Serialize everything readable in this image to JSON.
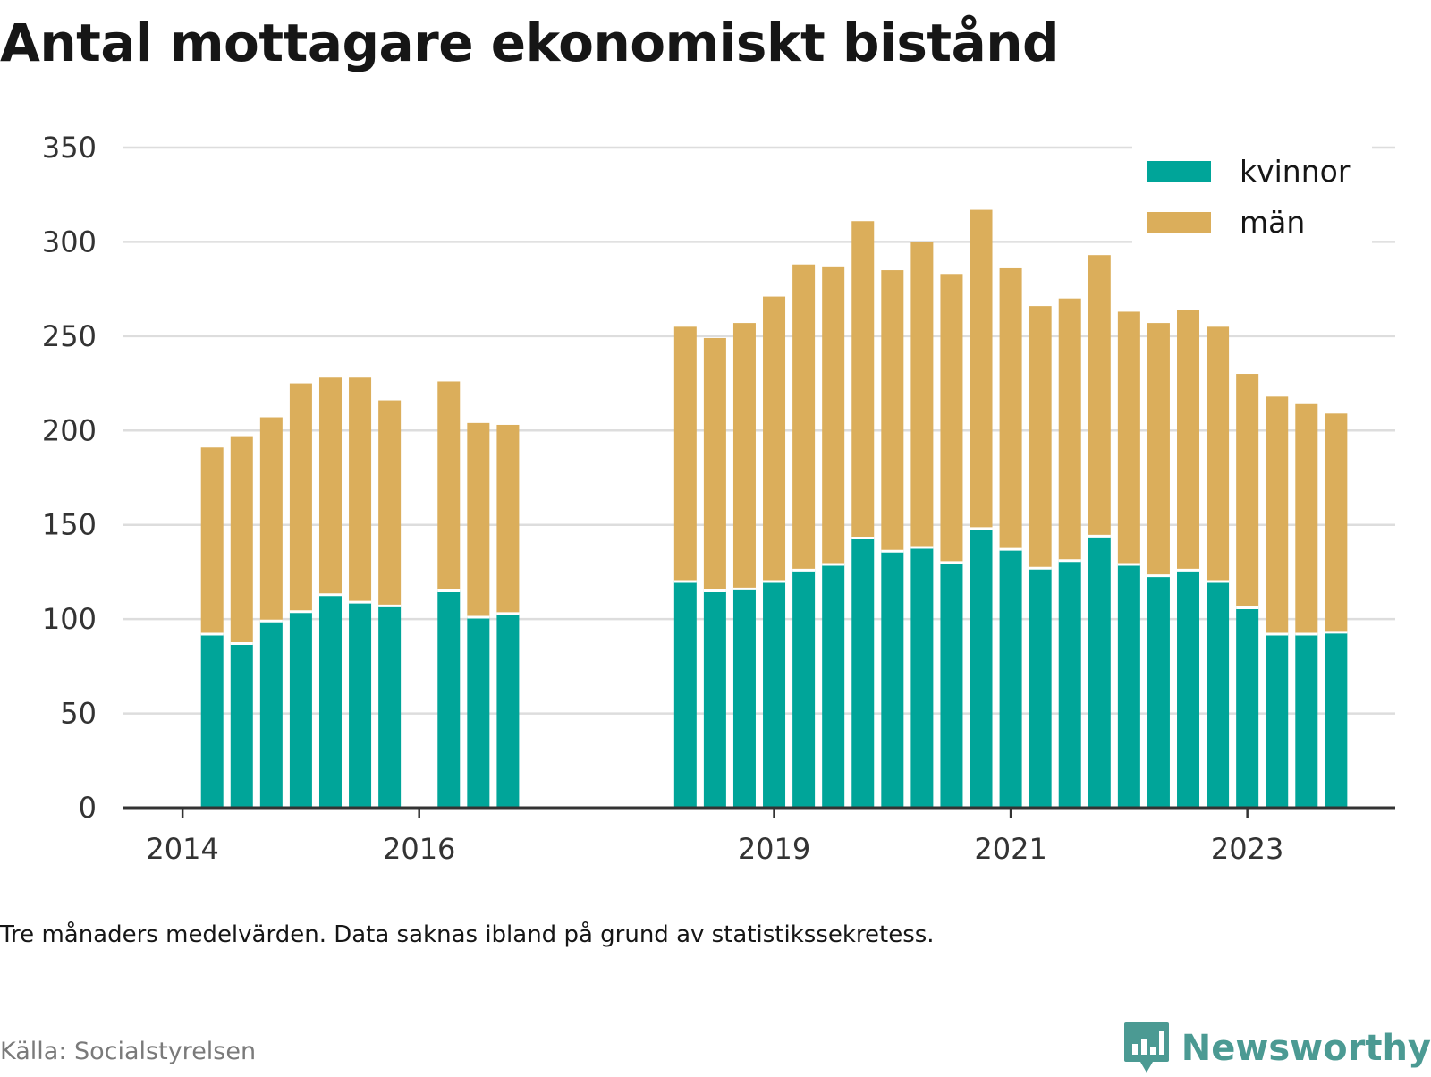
{
  "title": "Antal mottagare ekonomiskt bistånd",
  "note": "Tre månaders medelvärden. Data saknas ibland på grund av statistikssekretess.",
  "source": "Källa: Socialstyrelsen",
  "brand": {
    "name": "Newsworthy",
    "icon": "newsworthy-logo-icon"
  },
  "colors": {
    "kvinnor": "#00a599",
    "man": "#dbae5b",
    "grid": "#dddddd",
    "axis": "#333333",
    "text": "#333333",
    "brand": "#4b9a93"
  },
  "chart_data": {
    "type": "bar",
    "stacked": true,
    "ylim": [
      0,
      350
    ],
    "yticks": [
      0,
      50,
      100,
      150,
      200,
      250,
      300,
      350
    ],
    "xlim": [
      2013.5,
      2024.25
    ],
    "xticks": [
      2014,
      2016,
      2019,
      2021,
      2023
    ],
    "grid": true,
    "legend": "top-right",
    "series": [
      {
        "name": "kvinnor",
        "color": "#00a599",
        "values": [
          92,
          87,
          99,
          104,
          113,
          109,
          107,
          115,
          101,
          103,
          120,
          115,
          116,
          120,
          126,
          129,
          143,
          136,
          138,
          130,
          148,
          137,
          127,
          131,
          144,
          129,
          123,
          126,
          120,
          106,
          92,
          92,
          93
        ]
      },
      {
        "name": "män",
        "color": "#dbae5b",
        "values": [
          99,
          110,
          108,
          121,
          115,
          119,
          109,
          111,
          103,
          100,
          135,
          134,
          141,
          151,
          162,
          158,
          168,
          149,
          162,
          153,
          169,
          149,
          139,
          139,
          149,
          134,
          134,
          138,
          135,
          124,
          126,
          122,
          116
        ]
      }
    ],
    "x": [
      2014.25,
      2014.5,
      2014.75,
      2015.0,
      2015.25,
      2015.5,
      2015.75,
      2016.25,
      2016.5,
      2016.75,
      2018.25,
      2018.5,
      2018.75,
      2019.0,
      2019.25,
      2019.5,
      2019.75,
      2020.0,
      2020.25,
      2020.5,
      2020.75,
      2021.0,
      2021.25,
      2021.5,
      2021.75,
      2022.0,
      2022.25,
      2022.5,
      2022.75,
      2023.0,
      2023.25,
      2023.5,
      2023.75
    ]
  }
}
